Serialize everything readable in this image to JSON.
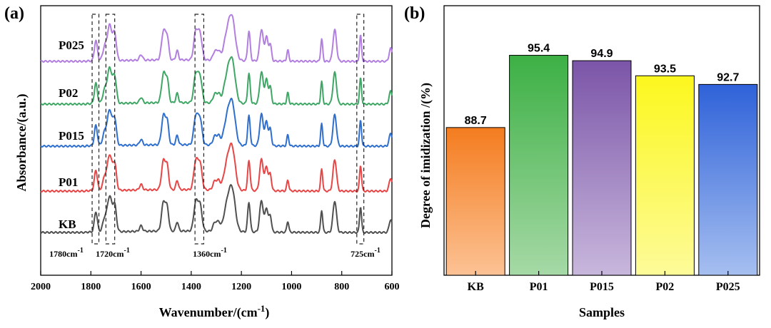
{
  "chart_data": [
    {
      "panel_label": "(a)",
      "type": "line",
      "title": "",
      "xlabel_main": "Wavenumber/(cm",
      "xlabel_sup": "-1",
      "xlabel_close": ")",
      "ylabel": "Absorbance/(a.u.)",
      "xlim": [
        2000,
        600
      ],
      "xticks": [
        "2000",
        "1800",
        "1600",
        "1400",
        "1200",
        "1000",
        "800",
        "600"
      ],
      "xtick_values": [
        2000,
        1800,
        1600,
        1400,
        1200,
        1000,
        800,
        600
      ],
      "series": [
        {
          "name": "KB",
          "color": "#505050"
        },
        {
          "name": "P01",
          "color": "#e84646"
        },
        {
          "name": "P015",
          "color": "#2f6fce"
        },
        {
          "name": "P02",
          "color": "#3fa765"
        },
        {
          "name": "P025",
          "color": "#b27ee0"
        }
      ],
      "peaks": [
        {
          "pos": 1780,
          "w": 6,
          "h": 0.55
        },
        {
          "pos": 1745,
          "w": 8,
          "h": 0.35
        },
        {
          "pos": 1725,
          "w": 9,
          "h": 0.95
        },
        {
          "pos": 1705,
          "w": 7,
          "h": 0.7
        },
        {
          "pos": 1600,
          "w": 6,
          "h": 0.15
        },
        {
          "pos": 1510,
          "w": 8,
          "h": 0.8
        },
        {
          "pos": 1495,
          "w": 6,
          "h": 0.55
        },
        {
          "pos": 1456,
          "w": 5,
          "h": 0.25
        },
        {
          "pos": 1382,
          "w": 8,
          "h": 0.75
        },
        {
          "pos": 1365,
          "w": 8,
          "h": 0.7
        },
        {
          "pos": 1305,
          "w": 8,
          "h": 0.25
        },
        {
          "pos": 1290,
          "w": 6,
          "h": 0.2
        },
        {
          "pos": 1255,
          "w": 14,
          "h": 0.75
        },
        {
          "pos": 1235,
          "w": 12,
          "h": 0.9
        },
        {
          "pos": 1170,
          "w": 5,
          "h": 0.8
        },
        {
          "pos": 1120,
          "w": 7,
          "h": 0.85
        },
        {
          "pos": 1100,
          "w": 6,
          "h": 0.65
        },
        {
          "pos": 1085,
          "w": 5,
          "h": 0.45
        },
        {
          "pos": 1015,
          "w": 4,
          "h": 0.3
        },
        {
          "pos": 880,
          "w": 4,
          "h": 0.6
        },
        {
          "pos": 828,
          "w": 7,
          "h": 0.85
        },
        {
          "pos": 725,
          "w": 4,
          "h": 0.7
        },
        {
          "pos": 605,
          "w": 6,
          "h": 0.35
        }
      ],
      "annotations": [
        {
          "text": "1780cm",
          "sup": "-1",
          "region": [
            1795,
            1768
          ]
        },
        {
          "text": "1720cm",
          "sup": "-1",
          "region": [
            1740,
            1705
          ]
        },
        {
          "text": "1360cm",
          "sup": "-1",
          "region": [
            1385,
            1350
          ]
        },
        {
          "text": "725cm",
          "sup": "-1",
          "region": [
            740,
            712
          ]
        }
      ]
    },
    {
      "panel_label": "(b)",
      "type": "bar",
      "title": "",
      "xlabel": "Samples",
      "ylabel": "Degree of imidization /(%)",
      "categories": [
        "KB",
        "P01",
        "P015",
        "P02",
        "P025"
      ],
      "values": [
        88.7,
        95.4,
        94.9,
        93.5,
        92.7
      ],
      "value_labels": [
        "88.7",
        "95.4",
        "94.9",
        "93.5",
        "92.7"
      ],
      "ylim": [
        75,
        100
      ],
      "colors_top": [
        "#f47c1f",
        "#3cb044",
        "#7b55a8",
        "#fcf71e",
        "#2f62d9"
      ],
      "colors_bottom": [
        "#fcc294",
        "#a6d9a6",
        "#c8b7dc",
        "#fdfb99",
        "#a6bff0"
      ]
    }
  ]
}
